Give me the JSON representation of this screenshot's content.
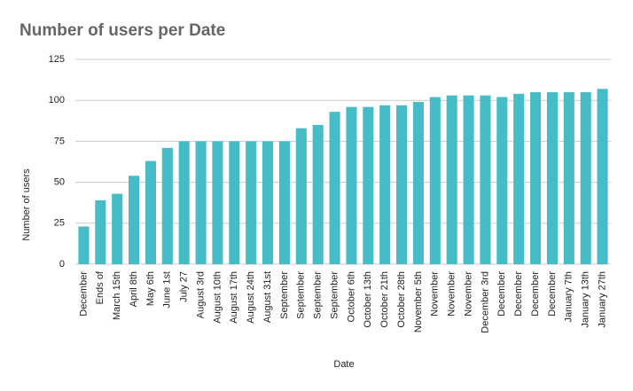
{
  "chart_data": {
    "type": "bar",
    "title": "Number of users per Date",
    "x_label": "Date",
    "y_label": "Number of users",
    "categories": [
      "December",
      "Ends of",
      "March 15th",
      "April 8th",
      "May 6th",
      "June 1st",
      "July 27",
      "August 3rd",
      "August 10th",
      "August 17th",
      "August 24th",
      "August 31st",
      "September",
      "September",
      "September",
      "September",
      "October 6th",
      "October 13th",
      "October 21th",
      "October 28th",
      "November 5th",
      "November",
      "November",
      "November",
      "December 3rd",
      "December",
      "December",
      "December",
      "December",
      "January 7th",
      "January 13th",
      "January 27th"
    ],
    "values": [
      23,
      39,
      43,
      54,
      63,
      71,
      75,
      75,
      75,
      75,
      75,
      75,
      75,
      83,
      85,
      93,
      96,
      96,
      97,
      97,
      99,
      102,
      103,
      103,
      103,
      102,
      104,
      105,
      105,
      105,
      105,
      107
    ],
    "color": "#46bdc6",
    "ylim": [
      0,
      125
    ],
    "yticks": [
      0,
      25,
      50,
      75,
      100,
      125
    ],
    "grid": true
  }
}
